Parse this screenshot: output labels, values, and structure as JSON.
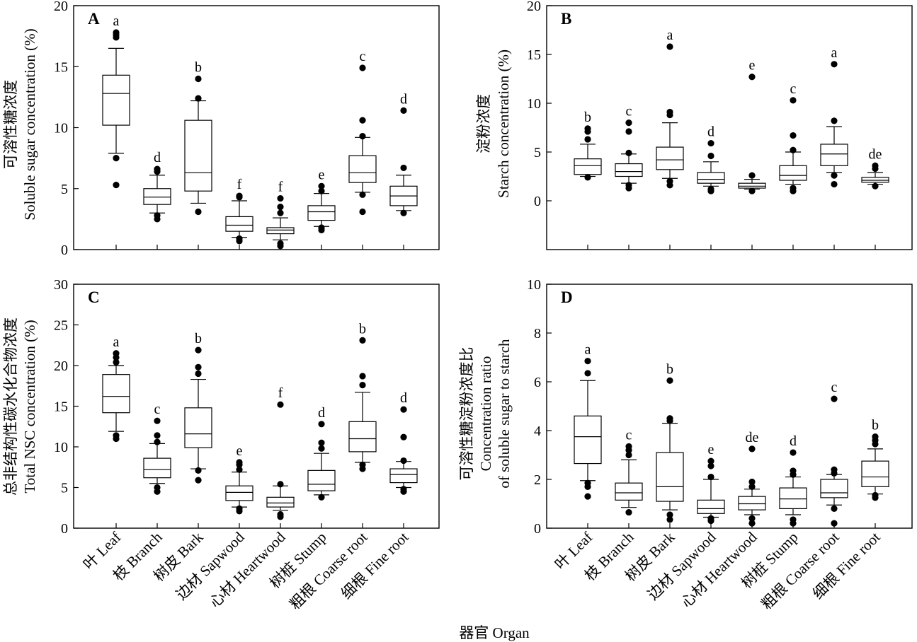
{
  "figure": {
    "categories": [
      "叶 Leaf",
      "枝 Branch",
      "树皮 Bark",
      "边材 Sapwood",
      "心材 Heartwood",
      "树桩 Stump",
      "粗根 Coarse root",
      "细根 Fine root"
    ],
    "x_axis_title": "器官 Organ"
  },
  "chart_data": [
    {
      "type": "box",
      "panel": "A",
      "ylabel_cn": "可溶性糖浓度",
      "ylabel_en": "Soluble sugar concentration (%)",
      "ylim": [
        0,
        20
      ],
      "yticks": [
        0,
        5,
        10,
        15,
        20
      ],
      "boxes": [
        {
          "category": "叶 Leaf",
          "q1": 10.2,
          "median": 12.8,
          "q3": 14.3,
          "whisker_low": 7.9,
          "whisker_high": 16.5,
          "outliers": [
            5.3,
            7.5,
            17.4,
            17.6,
            17.8
          ],
          "letter": "a"
        },
        {
          "category": "枝 Branch",
          "q1": 3.7,
          "median": 4.3,
          "q3": 5.0,
          "whisker_low": 3.0,
          "whisker_high": 6.1,
          "outliers": [
            2.5,
            2.8,
            6.4,
            6.6
          ],
          "letter": "d"
        },
        {
          "category": "树皮 Bark",
          "q1": 4.8,
          "median": 6.3,
          "q3": 10.6,
          "whisker_low": 3.8,
          "whisker_high": 12.2,
          "outliers": [
            3.1,
            12.4,
            14.0
          ],
          "letter": "b"
        },
        {
          "category": "边材 Sapwood",
          "q1": 1.5,
          "median": 2.0,
          "q3": 2.7,
          "whisker_low": 1.0,
          "whisker_high": 4.0,
          "outliers": [
            0.7,
            0.9,
            4.3,
            4.4
          ],
          "letter": "f"
        },
        {
          "category": "心材 Heartwood",
          "q1": 1.3,
          "median": 1.6,
          "q3": 1.8,
          "whisker_low": 0.8,
          "whisker_high": 2.6,
          "outliers": [
            0.3,
            0.5,
            3.0,
            3.5,
            4.2
          ],
          "letter": "f"
        },
        {
          "category": "树桩 Stump",
          "q1": 2.4,
          "median": 3.1,
          "q3": 3.6,
          "whisker_low": 1.9,
          "whisker_high": 4.6,
          "outliers": [
            1.6,
            1.8,
            4.8,
            5.2
          ],
          "letter": "e"
        },
        {
          "category": "粗根 Coarse root",
          "q1": 5.5,
          "median": 6.3,
          "q3": 7.7,
          "whisker_low": 4.7,
          "whisker_high": 9.2,
          "outliers": [
            3.1,
            4.5,
            9.3,
            10.6,
            14.9
          ],
          "letter": "c"
        },
        {
          "category": "细根 Fine root",
          "q1": 3.6,
          "median": 4.4,
          "q3": 5.2,
          "whisker_low": 3.2,
          "whisker_high": 6.1,
          "outliers": [
            3.0,
            6.7,
            11.4
          ],
          "letter": "d"
        }
      ]
    },
    {
      "type": "box",
      "panel": "B",
      "ylabel_cn": "淀粉浓度",
      "ylabel_en": "Starch concentration (%)",
      "ylim": [
        -5,
        20
      ],
      "yticks": [
        0,
        5,
        10,
        15,
        20
      ],
      "boxes": [
        {
          "category": "叶 Leaf",
          "q1": 2.7,
          "median": 3.6,
          "q3": 4.3,
          "whisker_low": 2.5,
          "whisker_high": 5.8,
          "outliers": [
            2.4,
            6.3,
            7.1,
            7.4
          ],
          "letter": "b"
        },
        {
          "category": "枝 Branch",
          "q1": 2.5,
          "median": 3.0,
          "q3": 3.8,
          "whisker_low": 1.8,
          "whisker_high": 4.8,
          "outliers": [
            1.3,
            1.6,
            4.9,
            7.1,
            8.0
          ],
          "letter": "c"
        },
        {
          "category": "树皮 Bark",
          "q1": 3.2,
          "median": 4.2,
          "q3": 5.5,
          "whisker_low": 2.3,
          "whisker_high": 8.0,
          "outliers": [
            1.6,
            2.0,
            8.8,
            9.1,
            15.8
          ],
          "letter": "a"
        },
        {
          "category": "边材 Sapwood",
          "q1": 1.8,
          "median": 2.2,
          "q3": 2.9,
          "whisker_low": 1.5,
          "whisker_high": 4.0,
          "outliers": [
            1.0,
            1.2,
            4.6,
            5.9
          ],
          "letter": "d"
        },
        {
          "category": "心材 Heartwood",
          "q1": 1.3,
          "median": 1.5,
          "q3": 1.8,
          "whisker_low": 1.2,
          "whisker_high": 2.2,
          "outliers": [
            1.0,
            2.6,
            12.7
          ],
          "letter": "e"
        },
        {
          "category": "树桩 Stump",
          "q1": 2.1,
          "median": 2.6,
          "q3": 3.6,
          "whisker_low": 1.7,
          "whisker_high": 5.0,
          "outliers": [
            1.0,
            1.3,
            5.2,
            6.7,
            10.3
          ],
          "letter": "c"
        },
        {
          "category": "粗根 Coarse root",
          "q1": 3.6,
          "median": 4.8,
          "q3": 5.8,
          "whisker_low": 2.9,
          "whisker_high": 7.6,
          "outliers": [
            1.7,
            2.6,
            8.2,
            14.0
          ],
          "letter": "a"
        },
        {
          "category": "细根 Fine root",
          "q1": 1.9,
          "median": 2.1,
          "q3": 2.4,
          "whisker_low": 1.7,
          "whisker_high": 2.9,
          "outliers": [
            1.5,
            3.3,
            3.6
          ],
          "letter": "de"
        }
      ]
    },
    {
      "type": "box",
      "panel": "C",
      "ylabel_cn": "总非结构性碳水化合物浓度",
      "ylabel_en": "Total NSC concentration (%)",
      "ylim": [
        0,
        30
      ],
      "yticks": [
        0,
        5,
        10,
        15,
        20,
        25,
        30
      ],
      "boxes": [
        {
          "category": "叶 Leaf",
          "q1": 14.2,
          "median": 16.2,
          "q3": 18.9,
          "whisker_low": 11.9,
          "whisker_high": 20.0,
          "outliers": [
            11.0,
            11.4,
            20.4,
            21.0,
            21.5
          ],
          "letter": "a"
        },
        {
          "category": "枝 Branch",
          "q1": 6.2,
          "median": 7.2,
          "q3": 8.6,
          "whisker_low": 5.5,
          "whisker_high": 10.4,
          "outliers": [
            4.5,
            5.0,
            10.6,
            11.4,
            13.2
          ],
          "letter": "c"
        },
        {
          "category": "树皮 Bark",
          "q1": 9.9,
          "median": 11.6,
          "q3": 14.8,
          "whisker_low": 7.3,
          "whisker_high": 18.3,
          "outliers": [
            5.9,
            7.1,
            19.0,
            19.8,
            21.9
          ],
          "letter": "b"
        },
        {
          "category": "边材 Sapwood",
          "q1": 3.4,
          "median": 4.4,
          "q3": 5.2,
          "whisker_low": 2.6,
          "whisker_high": 6.9,
          "outliers": [
            2.1,
            2.4,
            7.2,
            7.8,
            8.1
          ],
          "letter": "e"
        },
        {
          "category": "心材 Heartwood",
          "q1": 2.6,
          "median": 3.1,
          "q3": 3.8,
          "whisker_low": 2.2,
          "whisker_high": 5.2,
          "outliers": [
            1.4,
            1.7,
            5.4,
            15.2
          ],
          "letter": "f"
        },
        {
          "category": "树桩 Stump",
          "q1": 4.6,
          "median": 5.4,
          "q3": 7.1,
          "whisker_low": 4.1,
          "whisker_high": 9.2,
          "outliers": [
            3.8,
            9.8,
            10.5,
            12.8
          ],
          "letter": "d"
        },
        {
          "category": "粗根 Coarse root",
          "q1": 9.4,
          "median": 11.0,
          "q3": 13.1,
          "whisker_low": 8.1,
          "whisker_high": 16.7,
          "outliers": [
            7.3,
            7.8,
            17.6,
            18.7,
            23.1
          ],
          "letter": "b"
        },
        {
          "category": "细根 Fine root",
          "q1": 5.6,
          "median": 6.6,
          "q3": 7.3,
          "whisker_low": 5.0,
          "whisker_high": 8.2,
          "outliers": [
            4.5,
            4.8,
            8.3,
            11.2,
            14.6
          ],
          "letter": "d"
        }
      ]
    },
    {
      "type": "box",
      "panel": "D",
      "ylabel_cn": "可溶性糖淀粉浓度比",
      "ylabel_en_line1": "Concentration ratio",
      "ylabel_en_line2": "of soluble sugar to starch",
      "ylim": [
        0,
        10
      ],
      "yticks": [
        0,
        2,
        4,
        6,
        8,
        10
      ],
      "boxes": [
        {
          "category": "叶 Leaf",
          "q1": 2.65,
          "median": 3.75,
          "q3": 4.6,
          "whisker_low": 1.95,
          "whisker_high": 6.05,
          "outliers": [
            1.3,
            1.7,
            1.85,
            6.35,
            6.85
          ],
          "letter": "a"
        },
        {
          "category": "枝 Branch",
          "q1": 1.15,
          "median": 1.45,
          "q3": 1.85,
          "whisker_low": 0.85,
          "whisker_high": 2.8,
          "outliers": [
            0.65,
            3.0,
            3.2,
            3.35
          ],
          "letter": "c"
        },
        {
          "category": "树皮 Bark",
          "q1": 1.1,
          "median": 1.7,
          "q3": 3.1,
          "whisker_low": 0.75,
          "whisker_high": 4.3,
          "outliers": [
            0.35,
            0.55,
            4.4,
            4.5,
            6.05
          ],
          "letter": "b"
        },
        {
          "category": "边材 Sapwood",
          "q1": 0.6,
          "median": 0.8,
          "q3": 1.15,
          "whisker_low": 0.45,
          "whisker_high": 2.0,
          "outliers": [
            0.3,
            0.4,
            2.1,
            2.55,
            2.75
          ],
          "letter": "e"
        },
        {
          "category": "心材 Heartwood",
          "q1": 0.75,
          "median": 1.0,
          "q3": 1.3,
          "whisker_low": 0.55,
          "whisker_high": 1.6,
          "outliers": [
            0.2,
            0.4,
            1.7,
            1.9,
            3.25
          ],
          "letter": "de"
        },
        {
          "category": "树桩 Stump",
          "q1": 0.8,
          "median": 1.2,
          "q3": 1.65,
          "whisker_low": 0.55,
          "whisker_high": 2.1,
          "outliers": [
            0.2,
            0.35,
            2.2,
            2.35,
            3.1
          ],
          "letter": "d"
        },
        {
          "category": "粗根 Coarse root",
          "q1": 1.25,
          "median": 1.45,
          "q3": 2.0,
          "whisker_low": 0.95,
          "whisker_high": 2.2,
          "outliers": [
            0.2,
            0.8,
            2.25,
            2.4,
            5.3
          ],
          "letter": "c"
        },
        {
          "category": "细根 Fine root",
          "q1": 1.7,
          "median": 2.1,
          "q3": 2.75,
          "whisker_low": 1.4,
          "whisker_high": 3.25,
          "outliers": [
            1.25,
            1.35,
            3.45,
            3.6,
            3.75
          ],
          "letter": "b"
        }
      ]
    }
  ]
}
